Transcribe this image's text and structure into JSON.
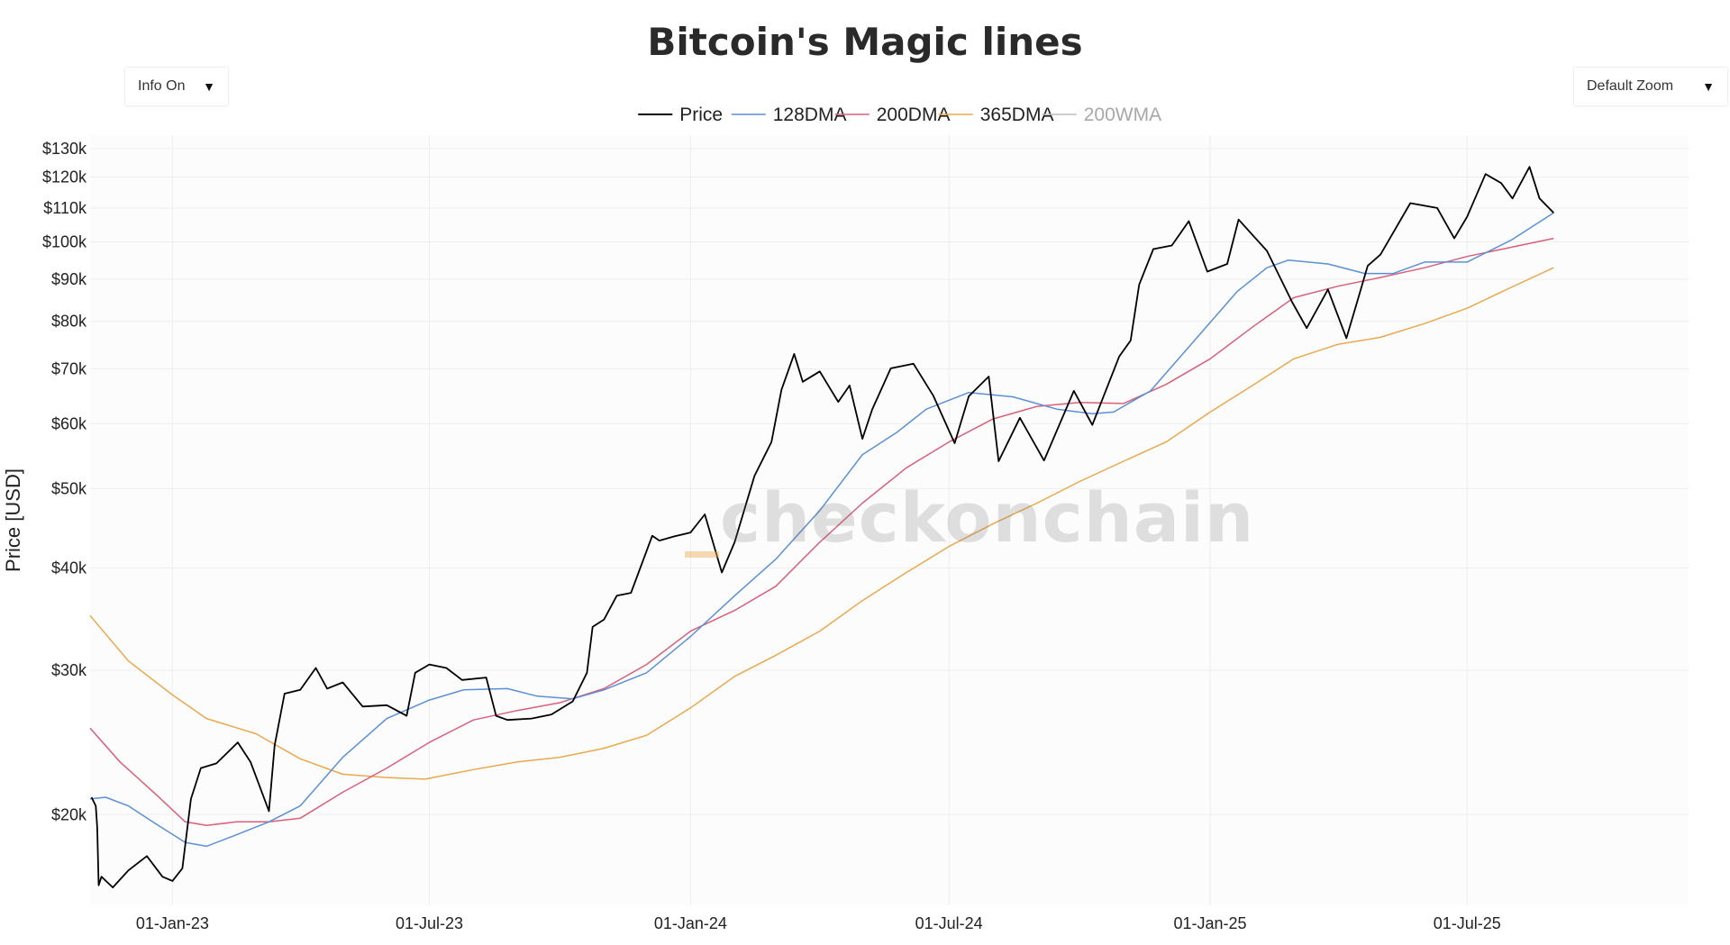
{
  "header": {
    "title": "Bitcoin's Magic lines",
    "info_dropdown": "Info On",
    "zoom_dropdown": "Default Zoom",
    "dropdown_arrow": "▼"
  },
  "watermark": {
    "prefix": "_",
    "text": "checkonchain"
  },
  "colors": {
    "price": "#000000",
    "dma128": "#5b8fd6",
    "dma200": "#d8607a",
    "dma365": "#e9a84e",
    "wma200": "#bdbdbd",
    "grid": "#eeeeee",
    "plot_bg": "#fcfcfc"
  },
  "chart_data": {
    "type": "line",
    "title": "Bitcoin's Magic lines",
    "xlabel": "",
    "ylabel": "Price [USD]",
    "yscale": "log",
    "ylim": [
      15500,
      135000
    ],
    "xlim": [
      "2022-11-04",
      "2025-12-04"
    ],
    "grid": true,
    "legend_position": "top-center",
    "x_ticks": [
      "2023-01-01",
      "2023-07-01",
      "2024-01-01",
      "2024-07-01",
      "2025-01-01",
      "2025-07-01"
    ],
    "x_tick_labels": [
      "01-Jan-23",
      "01-Jul-23",
      "01-Jan-24",
      "01-Jul-24",
      "01-Jan-25",
      "01-Jul-25"
    ],
    "y_ticks": [
      20000,
      30000,
      40000,
      50000,
      60000,
      70000,
      80000,
      90000,
      100000,
      110000,
      120000,
      130000
    ],
    "y_tick_labels": [
      "$20k",
      "$30k",
      "$40k",
      "$50k",
      "$60k",
      "$70k",
      "$80k",
      "$90k",
      "$100k",
      "$110k",
      "$120k",
      "$130k"
    ],
    "series": [
      {
        "name": "Price",
        "key": "price",
        "x": [
          "2022-11-05",
          "2022-11-08",
          "2022-11-09",
          "2022-11-10",
          "2022-11-12",
          "2022-11-20",
          "2022-12-01",
          "2022-12-14",
          "2022-12-25",
          "2023-01-01",
          "2023-01-08",
          "2023-01-14",
          "2023-01-21",
          "2023-02-01",
          "2023-02-16",
          "2023-02-25",
          "2023-03-10",
          "2023-03-14",
          "2023-03-21",
          "2023-04-01",
          "2023-04-12",
          "2023-04-20",
          "2023-05-01",
          "2023-05-15",
          "2023-06-01",
          "2023-06-15",
          "2023-06-21",
          "2023-07-01",
          "2023-07-13",
          "2023-07-24",
          "2023-08-10",
          "2023-08-17",
          "2023-08-25",
          "2023-09-11",
          "2023-09-25",
          "2023-10-10",
          "2023-10-20",
          "2023-10-24",
          "2023-11-01",
          "2023-11-10",
          "2023-11-20",
          "2023-12-05",
          "2023-12-10",
          "2023-12-20",
          "2024-01-01",
          "2024-01-11",
          "2024-01-23",
          "2024-02-01",
          "2024-02-15",
          "2024-02-27",
          "2024-03-05",
          "2024-03-14",
          "2024-03-20",
          "2024-04-01",
          "2024-04-14",
          "2024-04-22",
          "2024-05-01",
          "2024-05-08",
          "2024-05-21",
          "2024-06-06",
          "2024-06-20",
          "2024-07-05",
          "2024-07-15",
          "2024-07-29",
          "2024-08-05",
          "2024-08-20",
          "2024-09-06",
          "2024-09-27",
          "2024-10-10",
          "2024-10-29",
          "2024-11-06",
          "2024-11-12",
          "2024-11-22",
          "2024-12-05",
          "2024-12-17",
          "2024-12-30",
          "2025-01-13",
          "2025-01-21",
          "2025-02-10",
          "2025-02-28",
          "2025-03-10",
          "2025-03-25",
          "2025-04-07",
          "2025-04-15",
          "2025-04-22",
          "2025-05-01",
          "2025-05-22",
          "2025-06-10",
          "2025-06-22",
          "2025-07-01",
          "2025-07-14",
          "2025-07-25",
          "2025-08-02",
          "2025-08-14",
          "2025-08-21",
          "2025-08-31"
        ],
        "values": [
          21000,
          20500,
          19300,
          16400,
          16800,
          16300,
          17100,
          17800,
          16800,
          16600,
          17200,
          20900,
          22800,
          23100,
          24500,
          23200,
          20200,
          24300,
          28100,
          28400,
          30200,
          28500,
          29000,
          27100,
          27200,
          26400,
          29800,
          30500,
          30200,
          29200,
          29400,
          26400,
          26100,
          26200,
          26500,
          27500,
          29800,
          33900,
          34600,
          37000,
          37300,
          43800,
          43200,
          43700,
          44200,
          46500,
          39500,
          43000,
          51800,
          57000,
          66000,
          73000,
          67500,
          69500,
          63800,
          66800,
          57500,
          62500,
          70100,
          71000,
          64900,
          56800,
          64800,
          68500,
          54000,
          61000,
          54100,
          65800,
          59800,
          72500,
          75800,
          88700,
          98000,
          99000,
          106000,
          92000,
          94000,
          106500,
          97500,
          84300,
          78500,
          87500,
          76300,
          85000,
          93500,
          96500,
          111500,
          110000,
          101000,
          107300,
          121000,
          118000,
          113000,
          123500,
          113000,
          108500
        ]
      },
      {
        "name": "128DMA",
        "key": "dma128",
        "x": [
          "2022-11-04",
          "2022-11-15",
          "2022-12-01",
          "2022-12-20",
          "2023-01-10",
          "2023-01-25",
          "2023-02-15",
          "2023-03-10",
          "2023-04-01",
          "2023-05-01",
          "2023-06-01",
          "2023-07-01",
          "2023-07-25",
          "2023-08-25",
          "2023-09-15",
          "2023-10-10",
          "2023-11-01",
          "2023-12-01",
          "2024-01-01",
          "2024-02-01",
          "2024-03-01",
          "2024-04-01",
          "2024-05-01",
          "2024-05-25",
          "2024-06-15",
          "2024-07-15",
          "2024-08-15",
          "2024-09-15",
          "2024-10-10",
          "2024-10-25",
          "2024-11-20",
          "2024-12-20",
          "2025-01-20",
          "2025-02-10",
          "2025-02-25",
          "2025-03-25",
          "2025-04-20",
          "2025-05-10",
          "2025-06-01",
          "2025-07-01",
          "2025-08-01",
          "2025-08-31"
        ],
        "values": [
          20900,
          21000,
          20500,
          19500,
          18500,
          18300,
          18900,
          19600,
          20500,
          23500,
          26200,
          27600,
          28400,
          28500,
          27900,
          27700,
          28400,
          29800,
          33000,
          37000,
          41000,
          47000,
          55000,
          58500,
          62500,
          65500,
          64700,
          62500,
          61700,
          62000,
          65800,
          75500,
          87000,
          93000,
          95000,
          94000,
          91500,
          91500,
          94500,
          94500,
          100500,
          108500
        ]
      },
      {
        "name": "200DMA",
        "key": "dma200",
        "x": [
          "2022-11-04",
          "2022-11-25",
          "2022-12-20",
          "2023-01-10",
          "2023-01-25",
          "2023-02-15",
          "2023-03-10",
          "2023-04-01",
          "2023-05-01",
          "2023-06-01",
          "2023-07-01",
          "2023-08-01",
          "2023-09-01",
          "2023-10-01",
          "2023-11-01",
          "2023-12-01",
          "2024-01-01",
          "2024-02-01",
          "2024-03-01",
          "2024-04-01",
          "2024-05-01",
          "2024-06-01",
          "2024-07-01",
          "2024-08-01",
          "2024-09-01",
          "2024-10-01",
          "2024-11-01",
          "2024-12-01",
          "2025-01-01",
          "2025-02-01",
          "2025-03-01",
          "2025-04-01",
          "2025-05-01",
          "2025-06-01",
          "2025-07-01",
          "2025-08-01",
          "2025-08-31"
        ],
        "values": [
          25500,
          23200,
          21200,
          19600,
          19400,
          19600,
          19600,
          19800,
          21300,
          22800,
          24500,
          26100,
          26800,
          27400,
          28500,
          30500,
          33500,
          35500,
          38000,
          43000,
          48000,
          53000,
          57000,
          60800,
          63000,
          63700,
          63500,
          67000,
          72000,
          79000,
          85500,
          88300,
          90500,
          93000,
          96000,
          98500,
          101000
        ]
      },
      {
        "name": "365DMA",
        "key": "dma365",
        "x": [
          "2022-11-04",
          "2022-12-01",
          "2023-01-01",
          "2023-01-25",
          "2023-03-01",
          "2023-04-01",
          "2023-05-01",
          "2023-06-01",
          "2023-06-28",
          "2023-08-01",
          "2023-09-01",
          "2023-10-01",
          "2023-11-01",
          "2023-12-01",
          "2024-01-01",
          "2024-02-01",
          "2024-03-01",
          "2024-04-01",
          "2024-05-01",
          "2024-06-01",
          "2024-07-01",
          "2024-08-01",
          "2024-09-01",
          "2024-10-01",
          "2024-11-01",
          "2024-12-01",
          "2025-01-01",
          "2025-02-01",
          "2025-03-01",
          "2025-04-01",
          "2025-05-01",
          "2025-06-01",
          "2025-07-01",
          "2025-08-01",
          "2025-08-31"
        ],
        "values": [
          35000,
          30800,
          28000,
          26200,
          25100,
          23400,
          22400,
          22200,
          22100,
          22700,
          23200,
          23500,
          24100,
          25000,
          27000,
          29500,
          31300,
          33500,
          36500,
          39500,
          42500,
          45300,
          48000,
          51000,
          54000,
          57000,
          62000,
          67000,
          72000,
          75000,
          76500,
          79500,
          83000,
          88000,
          93000
        ]
      },
      {
        "name": "200WMA",
        "key": "wma200",
        "x": [],
        "values": []
      }
    ]
  }
}
